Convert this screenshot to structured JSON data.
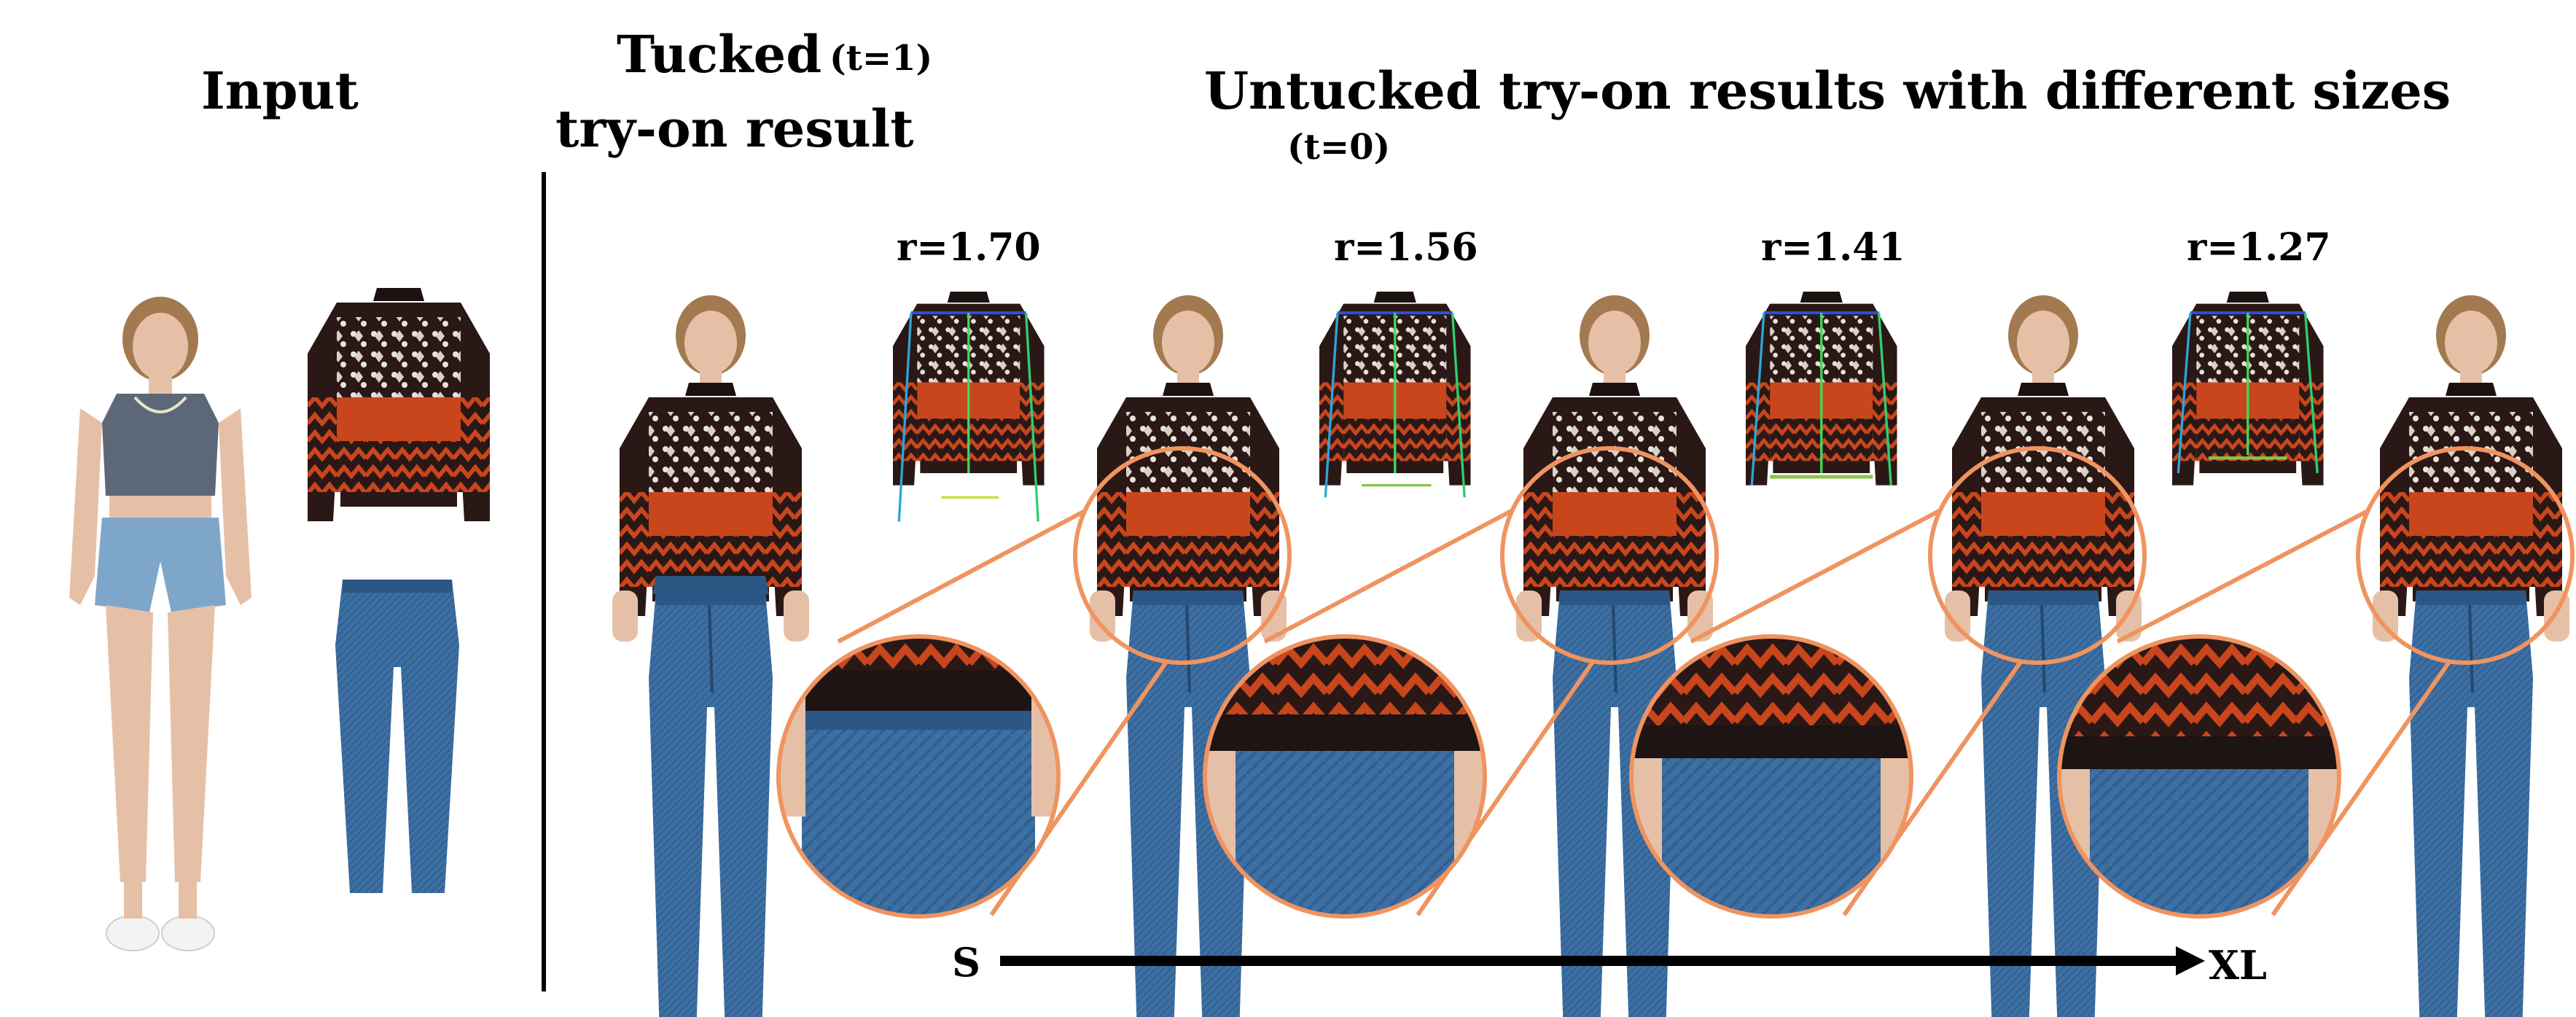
{
  "headers": {
    "input": "Input",
    "tucked_line1": "Tucked",
    "tucked_tag": "(t=1)",
    "tucked_line2": "try-on result",
    "untucked": "Untucked try-on results with different sizes",
    "untucked_tag": "(t=0)"
  },
  "ratios": [
    "r=1.70",
    "r=1.56",
    "r=1.41",
    "r=1.27"
  ],
  "size_axis": {
    "start": "S",
    "end": "XL"
  },
  "colors": {
    "sweater_body": "#2a1816",
    "sweater_orange": "#c9461d",
    "sweater_pattern": "#e8e4dc",
    "jeans": "#3d6fa3",
    "jeans_dark": "#2c5684",
    "shorts": "#7ea6c9",
    "tank": "#5c6878",
    "skin": "#e6c0a6",
    "hair": "#a37a50",
    "shoe": "#f3f3f3",
    "zoom_ring": "#ef9460",
    "divider": "#000000"
  }
}
